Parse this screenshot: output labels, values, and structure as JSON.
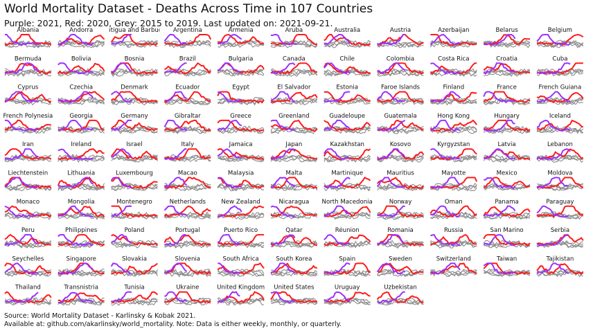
{
  "title": "World Mortality Dataset - Deaths Across Time in 107 Countries",
  "subtitle": "Purple: 2021, Red: 2020, Grey: 2015 to 2019. Last updated on: 2021-09-21.",
  "footer": {
    "line1": "Source: World Mortality Dataset - Karlinsky & Kobak 2021.",
    "line2": "Available at: github.com/akarlinsky/world_mortality. Note: Data is either weekly, monthly, or quarterly."
  },
  "colors": {
    "y2021": "#9b30ff",
    "y2020": "#ff1a1a",
    "baseline": "#8c8c8c"
  },
  "chart_data": {
    "type": "line",
    "layout": "small-multiples",
    "grid": false,
    "axes": "none",
    "series_legend": [
      {
        "name": "2021",
        "color": "#9b30ff"
      },
      {
        "name": "2020",
        "color": "#ff1a1a"
      },
      {
        "name": "2015 to 2019",
        "color": "#8c8c8c"
      }
    ],
    "panels": [
      "Albania",
      "Andorra",
      "Antigua and Barbuda",
      "Argentina",
      "Armenia",
      "Aruba",
      "Australia",
      "Austria",
      "Azerbaijan",
      "Belarus",
      "Belgium",
      "Bermuda",
      "Bolivia",
      "Bosnia",
      "Brazil",
      "Bulgaria",
      "Canada",
      "Chile",
      "Colombia",
      "Costa Rica",
      "Croatia",
      "Cuba",
      "Cyprus",
      "Czechia",
      "Denmark",
      "Ecuador",
      "Egypt",
      "El Salvador",
      "Estonia",
      "Faroe Islands",
      "Finland",
      "France",
      "French Guiana",
      "French Polynesia",
      "Georgia",
      "Germany",
      "Gibraltar",
      "Greece",
      "Greenland",
      "Guadeloupe",
      "Guatemala",
      "Hong Kong",
      "Hungary",
      "Iceland",
      "Iran",
      "Ireland",
      "Israel",
      "Italy",
      "Jamaica",
      "Japan",
      "Kazakhstan",
      "Kosovo",
      "Kyrgyzstan",
      "Latvia",
      "Lebanon",
      "Liechtenstein",
      "Lithuania",
      "Luxembourg",
      "Macao",
      "Malaysia",
      "Malta",
      "Martinique",
      "Mauritius",
      "Mayotte",
      "Mexico",
      "Moldova",
      "Monaco",
      "Mongolia",
      "Montenegro",
      "Netherlands",
      "New Zealand",
      "Nicaragua",
      "North Macedonia",
      "Norway",
      "Oman",
      "Panama",
      "Paraguay",
      "Peru",
      "Philippines",
      "Poland",
      "Portugal",
      "Puerto Rico",
      "Qatar",
      "Réunion",
      "Romania",
      "Russia",
      "San Marino",
      "Serbia",
      "Seychelles",
      "Singapore",
      "Slovakia",
      "Slovenia",
      "South Africa",
      "South Korea",
      "Spain",
      "Sweden",
      "Switzerland",
      "Taiwan",
      "Tajikistan",
      "Thailand",
      "Transnistria",
      "Tunisia",
      "Ukraine",
      "United Kingdom",
      "United States",
      "Uruguay",
      "Uzbekistan"
    ]
  }
}
